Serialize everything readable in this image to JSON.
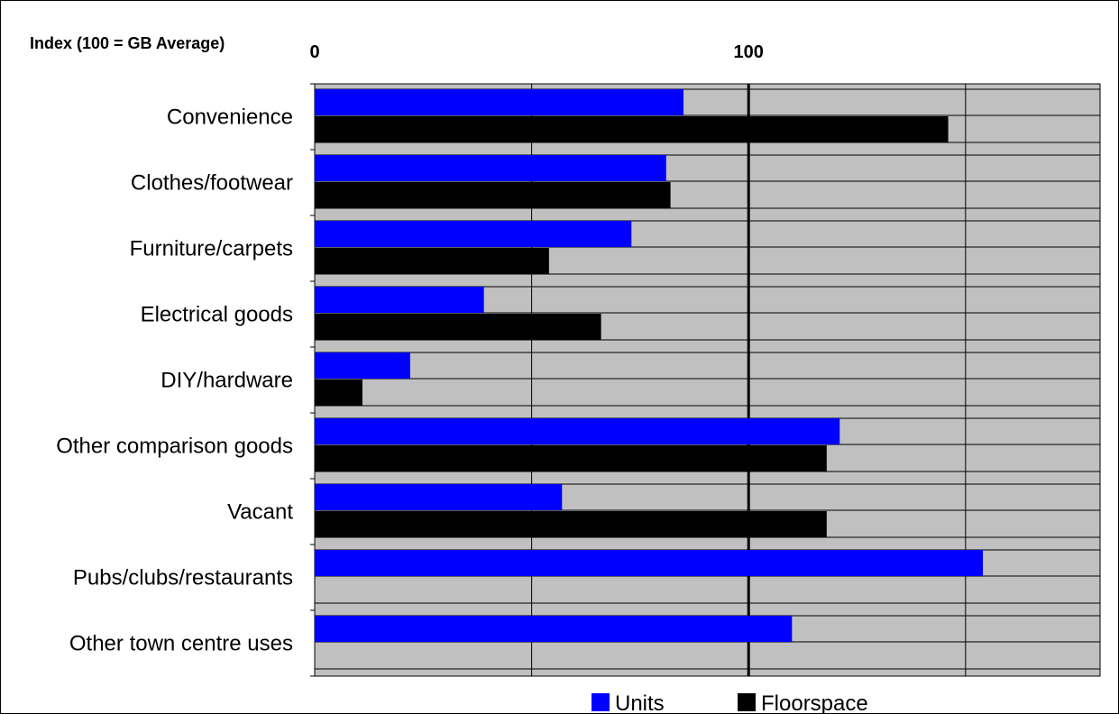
{
  "chart_data": {
    "type": "bar",
    "orientation": "horizontal",
    "axis_title": "Index (100 = GB Average)",
    "categories": [
      "Convenience",
      "Clothes/footwear",
      "Furniture/carpets",
      "Electrical goods",
      "DIY/hardware",
      "Other comparison goods",
      "Vacant",
      "Pubs/clubs/restaurants",
      "Other town centre uses"
    ],
    "series": [
      {
        "name": "Units",
        "color": "#0000ff",
        "values": [
          85,
          81,
          73,
          39,
          22,
          121,
          57,
          154,
          110
        ]
      },
      {
        "name": "Floorspace",
        "color": "#000000",
        "values": [
          146,
          82,
          54,
          66,
          11,
          118,
          118,
          null,
          null
        ]
      }
    ],
    "xlim": [
      0,
      181
    ],
    "tick_labels": [
      {
        "value": 0,
        "label": "0"
      },
      {
        "value": 100,
        "label": "100"
      }
    ],
    "gridlines_at": [
      0,
      50,
      100,
      150
    ],
    "reference_line": 100,
    "grid": true,
    "plot_background": "#c0c0c0",
    "legend_position": "bottom"
  }
}
